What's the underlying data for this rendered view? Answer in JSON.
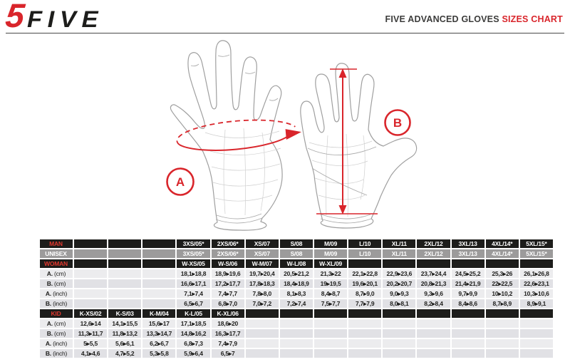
{
  "brand": {
    "logo_number": "5",
    "logo_text": "FIVE"
  },
  "header": {
    "title": "FIVE ADVANCED GLOVES",
    "title_accent": "SIZES CHART"
  },
  "diagram": {
    "label_a": "A",
    "label_b": "B"
  },
  "colors": {
    "accent": "#d9252b",
    "label_red": "#e0372e",
    "ink": "#3c3c3b",
    "table_black": "#1d1d1b",
    "table_gray": "#9c9b9b",
    "row_light": "#ececee",
    "row_mid": "#e1e1e5"
  },
  "table": {
    "rows": [
      {
        "name": "man",
        "kind": "black",
        "label": "MAN",
        "cells": [
          "",
          "",
          "",
          "3XS/05*",
          "2XS/06*",
          "XS/07",
          "S/08",
          "M/09",
          "L/10",
          "XL/11",
          "2XL/12",
          "3XL/13",
          "4XL/14*",
          "5XL/15*"
        ]
      },
      {
        "name": "unisex",
        "kind": "gray",
        "label": "UNISEX",
        "cells": [
          "",
          "",
          "",
          "3XS/05*",
          "2XS/06*",
          "XS/07",
          "S/08",
          "M/09",
          "L/10",
          "XL/11",
          "2XL/12",
          "3XL/13",
          "4XL/14*",
          "5XL/15*"
        ]
      },
      {
        "name": "woman",
        "kind": "black",
        "label": "WOMAN",
        "cells": [
          "",
          "",
          "",
          "W-XS/05",
          "W-S/06",
          "W-M/07",
          "W-L/08",
          "W-XL/09",
          "",
          "",
          "",
          "",
          "",
          ""
        ]
      },
      {
        "name": "adult-a-cm",
        "kind": "light",
        "label_b": "A.",
        "label_r": " (cm)",
        "cells": [
          "",
          "",
          "",
          "18,1▸18,8",
          "18,9▸19,6",
          "19,7▸20,4",
          "20,5▸21,2",
          "21,3▸22",
          "22,1▸22,8",
          "22,9▸23,6",
          "23,7▸24,4",
          "24,5▸25,2",
          "25,3▸26",
          "26,1▸26,8"
        ]
      },
      {
        "name": "adult-b-cm",
        "kind": "mid",
        "label_b": "B.",
        "label_r": " (cm)",
        "cells": [
          "",
          "",
          "",
          "16,6▸17,1",
          "17,2▸17,7",
          "17,8▸18,3",
          "18,4▸18,9",
          "19▸19,5",
          "19,6▸20,1",
          "20,2▸20,7",
          "20,8▸21,3",
          "21,4▸21,9",
          "22▸22,5",
          "22,6▸23,1"
        ]
      },
      {
        "name": "adult-a-inch",
        "kind": "light",
        "label_b": "A.",
        "label_r": " (inch)",
        "cells": [
          "",
          "",
          "",
          "7,1▸7,4",
          "7,4▸7,7",
          "7,8▸8,0",
          "8,1▸8,3",
          "8,4▸8,7",
          "8,7▸9,0",
          "9,0▸9,3",
          "9,3▸9,6",
          "9,7▸9,9",
          "10▸10,2",
          "10,3▸10,6"
        ]
      },
      {
        "name": "adult-b-inch",
        "kind": "mid",
        "label_b": "B.",
        "label_r": " (inch)",
        "cells": [
          "",
          "",
          "",
          "6,5▸6,7",
          "6,8▸7,0",
          "7,0▸7,2",
          "7,2▸7,4",
          "7,5▸7,7",
          "7,7▸7,9",
          "8,0▸8,1",
          "8,2▸8,4",
          "8,4▸8,6",
          "8,7▸8,9",
          "8,9▸9,1"
        ]
      },
      {
        "name": "kid",
        "kind": "black",
        "label": "KID",
        "cells": [
          "K-XS/02",
          "K-S/03",
          "K-M/04",
          "K-L/05",
          "K-XL/06",
          "",
          "",
          "",
          "",
          "",
          "",
          "",
          "",
          ""
        ]
      },
      {
        "name": "kid-a-cm",
        "kind": "light",
        "label_b": "A.",
        "label_r": " (cm)",
        "cells": [
          "12,6▸14",
          "14,1▸15,5",
          "15,6▸17",
          "17,1▸18,5",
          "18,6▸20",
          "",
          "",
          "",
          "",
          "",
          "",
          "",
          "",
          ""
        ]
      },
      {
        "name": "kid-b-cm",
        "kind": "mid",
        "label_b": "B.",
        "label_r": " (cm)",
        "cells": [
          "11,3▸11,7",
          "11,8▸13,2",
          "13,3▸14,7",
          "14,8▸16,2",
          "16,3▸17,7",
          "",
          "",
          "",
          "",
          "",
          "",
          "",
          "",
          ""
        ]
      },
      {
        "name": "kid-a-inch",
        "kind": "light",
        "label_b": "A.",
        "label_r": " (inch)",
        "cells": [
          "5▸5,5",
          "5,6▸6,1",
          "6,2▸6,7",
          "6,8▸7,3",
          "7,4▸7,9",
          "",
          "",
          "",
          "",
          "",
          "",
          "",
          "",
          ""
        ]
      },
      {
        "name": "kid-b-inch",
        "kind": "mid",
        "label_b": "B.",
        "label_r": " (inch)",
        "cells": [
          "4,1▸4,6",
          "4,7▸5,2",
          "5,3▸5,8",
          "5,9▸6,4",
          "6,5▸7",
          "",
          "",
          "",
          "",
          "",
          "",
          "",
          "",
          ""
        ]
      }
    ]
  }
}
